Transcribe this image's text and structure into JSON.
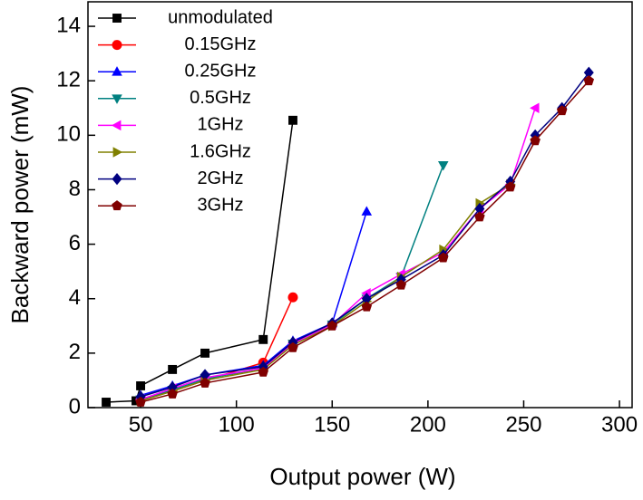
{
  "chart_data": {
    "type": "line",
    "xlabel": "Output power (W)",
    "ylabel": "Backward power (mW)",
    "xlim": [
      22.5,
      306.6
    ],
    "xticks": [
      50,
      100,
      150,
      200,
      250,
      300
    ],
    "ylim": [
      0,
      14.9
    ],
    "yticks": [
      0,
      2,
      4,
      6,
      8,
      10,
      12,
      14
    ],
    "legend": "upper left",
    "series": [
      {
        "name": "unmodulated",
        "color": "#000000",
        "marker": "square",
        "x": [
          32,
          47.6,
          50,
          66.6,
          83.6,
          114,
          129.5
        ],
        "values": [
          0.2,
          0.25,
          0.8,
          1.4,
          2.0,
          2.5,
          10.55
        ]
      },
      {
        "name": "0.15GHz",
        "color": "#ff0000",
        "marker": "circle",
        "x": [
          50,
          66.6,
          83.6,
          114,
          129.5
        ],
        "values": [
          0.3,
          0.6,
          1.0,
          1.65,
          4.05
        ]
      },
      {
        "name": "0.25GHz",
        "color": "#0000ff",
        "marker": "triangle-up",
        "x": [
          50,
          66.6,
          83.6,
          114,
          129.5,
          150,
          168
        ],
        "values": [
          0.45,
          0.8,
          1.2,
          1.55,
          2.45,
          3.1,
          7.2
        ]
      },
      {
        "name": "0.5GHz",
        "color": "#008080",
        "marker": "triangle-down",
        "x": [
          50,
          66.6,
          83.6,
          114,
          129.5,
          150,
          168,
          186,
          208
        ],
        "values": [
          0.3,
          0.65,
          1.05,
          1.45,
          2.35,
          3.05,
          4.0,
          4.8,
          8.9
        ]
      },
      {
        "name": "1GHz",
        "color": "#ff00ff",
        "marker": "triangle-left",
        "x": [
          50,
          66.6,
          83.6,
          114,
          129.5,
          150,
          168,
          186,
          208,
          227,
          243,
          256
        ],
        "values": [
          0.3,
          0.7,
          1.1,
          1.45,
          2.35,
          3.05,
          4.2,
          4.9,
          5.7,
          7.3,
          8.2,
          11.0
        ]
      },
      {
        "name": "1.6GHz",
        "color": "#808000",
        "marker": "triangle-right",
        "x": [
          50,
          66.6,
          83.6,
          114,
          129.5,
          150,
          168,
          186,
          208,
          227,
          243
        ],
        "values": [
          0.25,
          0.6,
          1.0,
          1.4,
          2.3,
          3.0,
          3.9,
          4.8,
          5.8,
          7.5,
          8.2
        ]
      },
      {
        "name": "2GHz",
        "color": "#000080",
        "marker": "diamond",
        "x": [
          50,
          66.6,
          83.6,
          114,
          129.5,
          150,
          168,
          186,
          208,
          227,
          243,
          256,
          270,
          284
        ],
        "values": [
          0.4,
          0.75,
          1.2,
          1.5,
          2.4,
          3.1,
          4.0,
          4.7,
          5.6,
          7.3,
          8.3,
          10.0,
          11.0,
          12.3
        ]
      },
      {
        "name": "3GHz",
        "color": "#800000",
        "marker": "pentagon",
        "x": [
          50,
          66.6,
          83.6,
          114,
          129.5,
          150,
          168,
          186,
          208,
          227,
          243,
          256,
          270,
          284
        ],
        "values": [
          0.2,
          0.5,
          0.9,
          1.3,
          2.2,
          3.0,
          3.7,
          4.5,
          5.5,
          7.0,
          8.1,
          9.8,
          10.9,
          12.0
        ]
      }
    ]
  }
}
